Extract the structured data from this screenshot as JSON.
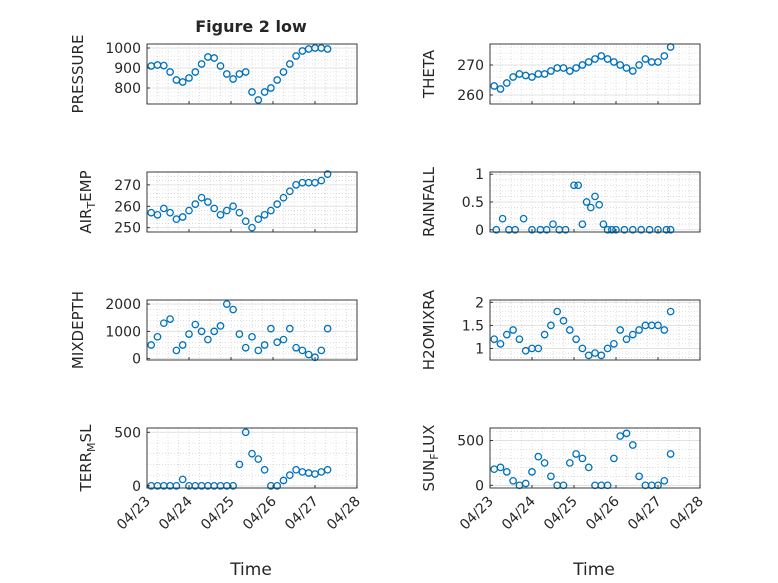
{
  "figure": {
    "title": "Figure 2 low",
    "xlabel": "Time"
  },
  "colors": {
    "marker": "#0072BD",
    "axis": "#262626",
    "grid": "#c8c8c8",
    "background": "#ffffff"
  },
  "chart_data": [
    {
      "type": "scatter",
      "name": "PRESSURE",
      "ylabel": "PRESSURE",
      "ylabel_sub": null,
      "ylim": [
        720,
        1020
      ],
      "yticks": [
        800,
        900,
        1000
      ],
      "xlim": [
        0,
        5
      ],
      "grid": true,
      "x": [
        0.1,
        0.25,
        0.4,
        0.55,
        0.7,
        0.85,
        1,
        1.15,
        1.3,
        1.45,
        1.6,
        1.75,
        1.9,
        2.05,
        2.2,
        2.35,
        2.5,
        2.65,
        2.8,
        2.95,
        3.1,
        3.25,
        3.4,
        3.55,
        3.7,
        3.85,
        4,
        4.15,
        4.3
      ],
      "y": [
        910,
        915,
        912,
        880,
        840,
        830,
        850,
        880,
        920,
        955,
        950,
        910,
        870,
        845,
        870,
        880,
        780,
        740,
        780,
        800,
        840,
        880,
        920,
        960,
        985,
        995,
        1000,
        1000,
        995
      ]
    },
    {
      "type": "scatter",
      "name": "THETA",
      "ylabel": "THETA",
      "ylabel_sub": null,
      "ylim": [
        257,
        277
      ],
      "yticks": [
        260,
        270
      ],
      "xlim": [
        0,
        5
      ],
      "grid": true,
      "x": [
        0.1,
        0.25,
        0.4,
        0.55,
        0.7,
        0.85,
        1,
        1.15,
        1.3,
        1.45,
        1.6,
        1.75,
        1.9,
        2.05,
        2.2,
        2.35,
        2.5,
        2.65,
        2.8,
        2.95,
        3.1,
        3.25,
        3.4,
        3.55,
        3.7,
        3.85,
        4,
        4.15,
        4.3
      ],
      "y": [
        263,
        262,
        264,
        266,
        267,
        266.5,
        266,
        267,
        267,
        268,
        269,
        269,
        268,
        269,
        270,
        271,
        272,
        273,
        272,
        271,
        270,
        269,
        268,
        270,
        272,
        271,
        271,
        273,
        276
      ]
    },
    {
      "type": "scatter",
      "name": "AIR_TEMP",
      "ylabel": "AIR",
      "ylabel_sub": "T",
      "ylabel_suffix": "EMP",
      "ylim": [
        248,
        276
      ],
      "yticks": [
        250,
        260,
        270
      ],
      "xlim": [
        0,
        5
      ],
      "grid": true,
      "x": [
        0.1,
        0.25,
        0.4,
        0.55,
        0.7,
        0.85,
        1,
        1.15,
        1.3,
        1.45,
        1.6,
        1.75,
        1.9,
        2.05,
        2.2,
        2.35,
        2.5,
        2.65,
        2.8,
        2.95,
        3.1,
        3.25,
        3.4,
        3.55,
        3.7,
        3.85,
        4,
        4.15,
        4.3
      ],
      "y": [
        257,
        256,
        259,
        257,
        254,
        255,
        258,
        261,
        264,
        262,
        259,
        256,
        258,
        260,
        257,
        253,
        250,
        254,
        256,
        258,
        261,
        264,
        267,
        270,
        271,
        271,
        271,
        272,
        275
      ]
    },
    {
      "type": "scatter",
      "name": "RAINFALL",
      "ylabel": "RAINFALL",
      "ylabel_sub": null,
      "ylim": [
        -0.04,
        1.04
      ],
      "yticks": [
        0,
        0.5,
        1
      ],
      "xlim": [
        0,
        5
      ],
      "grid": true,
      "x": [
        0.15,
        0.3,
        0.45,
        0.6,
        0.8,
        1,
        1.2,
        1.35,
        1.5,
        1.65,
        1.8,
        2.0,
        2.1,
        2.2,
        2.3,
        2.4,
        2.5,
        2.6,
        2.7,
        2.8,
        2.9,
        3.0,
        3.2,
        3.4,
        3.6,
        3.8,
        4.0,
        4.2,
        4.3
      ],
      "y": [
        0,
        0.2,
        0,
        0,
        0.2,
        0,
        0,
        0,
        0.1,
        0,
        0,
        0.8,
        0.8,
        0.1,
        0.5,
        0.4,
        0.6,
        0.45,
        0.1,
        0,
        0,
        0,
        0,
        0,
        0,
        0,
        0,
        0,
        0
      ]
    },
    {
      "type": "scatter",
      "name": "MIXDEPTH",
      "ylabel": "MIXDEPTH",
      "ylabel_sub": null,
      "ylim": [
        -50,
        2150
      ],
      "yticks": [
        0,
        1000,
        2000
      ],
      "xlim": [
        0,
        5
      ],
      "grid": true,
      "x": [
        0.1,
        0.25,
        0.4,
        0.55,
        0.7,
        0.85,
        1,
        1.15,
        1.3,
        1.45,
        1.6,
        1.75,
        1.9,
        2.05,
        2.2,
        2.35,
        2.5,
        2.65,
        2.8,
        2.95,
        3.1,
        3.25,
        3.4,
        3.55,
        3.7,
        3.85,
        4,
        4.15,
        4.3
      ],
      "y": [
        500,
        800,
        1300,
        1450,
        300,
        500,
        900,
        1250,
        1000,
        700,
        1000,
        1200,
        2000,
        1800,
        900,
        400,
        800,
        300,
        500,
        1100,
        600,
        700,
        1100,
        400,
        300,
        150,
        50,
        300,
        1100
      ]
    },
    {
      "type": "scatter",
      "name": "H2OMIXRA",
      "ylabel": "H2OMIXRA",
      "ylabel_sub": null,
      "ylim": [
        0.75,
        2.05
      ],
      "yticks": [
        1,
        1.5,
        2
      ],
      "xlim": [
        0,
        5
      ],
      "grid": true,
      "x": [
        0.1,
        0.25,
        0.4,
        0.55,
        0.7,
        0.85,
        1,
        1.15,
        1.3,
        1.45,
        1.6,
        1.75,
        1.9,
        2.05,
        2.2,
        2.35,
        2.5,
        2.65,
        2.8,
        2.95,
        3.1,
        3.25,
        3.4,
        3.55,
        3.7,
        3.85,
        4,
        4.15,
        4.3
      ],
      "y": [
        1.2,
        1.1,
        1.3,
        1.4,
        1.2,
        0.95,
        1.0,
        1.0,
        1.3,
        1.5,
        1.8,
        1.6,
        1.4,
        1.2,
        1.0,
        0.85,
        0.9,
        0.85,
        1.0,
        1.1,
        1.4,
        1.2,
        1.3,
        1.4,
        1.5,
        1.5,
        1.5,
        1.4,
        1.8
      ]
    },
    {
      "type": "scatter",
      "name": "TERR_MSL",
      "ylabel": "TERR",
      "ylabel_sub": "M",
      "ylabel_suffix": "SL",
      "ylim": [
        -20,
        540
      ],
      "yticks": [
        0,
        500
      ],
      "xlim": [
        0,
        5
      ],
      "grid": true,
      "x": [
        0.1,
        0.25,
        0.4,
        0.55,
        0.7,
        0.85,
        1,
        1.15,
        1.3,
        1.45,
        1.6,
        1.75,
        1.9,
        2.05,
        2.2,
        2.35,
        2.5,
        2.65,
        2.8,
        2.95,
        3.1,
        3.25,
        3.4,
        3.55,
        3.7,
        3.85,
        4,
        4.15,
        4.3
      ],
      "y": [
        0,
        0,
        0,
        0,
        0,
        60,
        0,
        0,
        0,
        0,
        0,
        0,
        0,
        0,
        200,
        500,
        300,
        250,
        150,
        0,
        0,
        50,
        100,
        150,
        130,
        120,
        110,
        130,
        150
      ]
    },
    {
      "type": "scatter",
      "name": "SUN_FLUX",
      "ylabel": "SUN",
      "ylabel_sub": "F",
      "ylabel_suffix": "LUX",
      "ylim": [
        -30,
        640
      ],
      "yticks": [
        0,
        500
      ],
      "xlim": [
        0,
        5
      ],
      "grid": true,
      "x": [
        0.1,
        0.25,
        0.4,
        0.55,
        0.7,
        0.85,
        1,
        1.15,
        1.3,
        1.45,
        1.6,
        1.75,
        1.9,
        2.05,
        2.2,
        2.35,
        2.5,
        2.65,
        2.8,
        2.95,
        3.1,
        3.25,
        3.4,
        3.55,
        3.7,
        3.85,
        4,
        4.15,
        4.3
      ],
      "y": [
        180,
        200,
        150,
        50,
        0,
        20,
        150,
        320,
        250,
        100,
        0,
        0,
        250,
        350,
        300,
        200,
        0,
        0,
        0,
        300,
        550,
        580,
        450,
        100,
        0,
        0,
        0,
        50,
        350
      ]
    }
  ],
  "xticks": [
    "04/23",
    "04/24",
    "04/25",
    "04/26",
    "04/27",
    "04/28"
  ]
}
